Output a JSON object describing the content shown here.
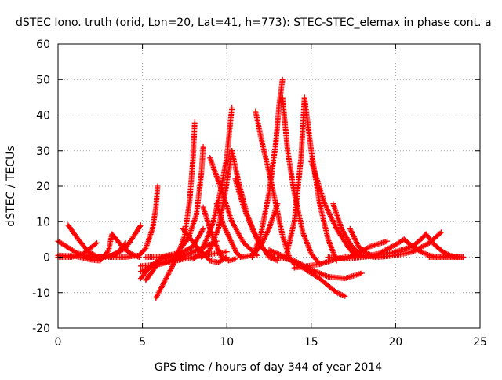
{
  "chart_data": {
    "type": "scatter",
    "title": "dSTEC Iono. truth (orid, Lon=20, Lat=41, h=773): STEC-STEC_elemax in phase cont. a",
    "xlabel": "GPS time / hours of day 344 of year 2014",
    "ylabel": "dSTEC  / TECUs",
    "xlim": [
      0,
      25
    ],
    "ylim": [
      -20,
      60
    ],
    "xticks": [
      0,
      5,
      10,
      15,
      20,
      25
    ],
    "yticks": [
      -20,
      -10,
      0,
      10,
      20,
      30,
      40,
      50,
      60
    ],
    "grid": true,
    "marker": "+",
    "color": "#ff0000",
    "series": [
      {
        "x": [
          0.0,
          0.5,
          1.0,
          1.5,
          2.0,
          2.3
        ],
        "y": [
          4.5,
          3.0,
          1.5,
          0.5,
          0.0,
          0.0
        ]
      },
      {
        "x": [
          0.0,
          0.8,
          1.5,
          2.3
        ],
        "y": [
          0.0,
          0.0,
          1.0,
          4.0
        ]
      },
      {
        "x": [
          0.6,
          1.2,
          1.8,
          2.4
        ],
        "y": [
          9.0,
          5.0,
          1.5,
          0.0
        ]
      },
      {
        "x": [
          0.0,
          1.0,
          2.0,
          2.5,
          3.0,
          3.2
        ],
        "y": [
          0.5,
          0.3,
          -0.8,
          -1.0,
          2.0,
          6.5
        ]
      },
      {
        "x": [
          3.2,
          3.8,
          4.3,
          4.8
        ],
        "y": [
          6.5,
          3.0,
          1.0,
          0.0
        ]
      },
      {
        "x": [
          2.5,
          3.2,
          4.0,
          4.5,
          4.9
        ],
        "y": [
          0.0,
          0.5,
          2.5,
          6.0,
          9.0
        ]
      },
      {
        "x": [
          1.5,
          2.8,
          3.5,
          4.0
        ],
        "y": [
          0.0,
          0.0,
          1.0,
          4.0
        ]
      },
      {
        "x": [
          4.9,
          5.5,
          6.2,
          6.8,
          7.3
        ],
        "y": [
          -6.0,
          -2.5,
          0.0,
          0.5,
          0.0
        ]
      },
      {
        "x": [
          5.2,
          5.6,
          6.1,
          6.6
        ],
        "y": [
          -6.5,
          -4.0,
          -0.5,
          0.0
        ]
      },
      {
        "x": [
          3.0,
          4.0,
          4.8,
          5.2,
          5.6,
          5.8,
          5.9
        ],
        "y": [
          0.0,
          0.0,
          0.5,
          2.5,
          8.0,
          14.0,
          20.0
        ]
      },
      {
        "x": [
          5.8,
          6.4,
          7.0,
          7.5,
          7.8,
          8.0,
          8.1
        ],
        "y": [
          -11.5,
          -6.0,
          -0.5,
          6.0,
          16.0,
          28.0,
          38.0
        ]
      },
      {
        "x": [
          4.9,
          6.0,
          7.5,
          8.5,
          9.4
        ],
        "y": [
          -4.0,
          -2.0,
          0.5,
          2.5,
          4.5
        ]
      },
      {
        "x": [
          4.9,
          6.0,
          7.0,
          8.0,
          9.0,
          10.0
        ],
        "y": [
          -2.5,
          -2.0,
          -1.0,
          0.0,
          0.8,
          1.5
        ]
      },
      {
        "x": [
          5.2,
          6.0,
          7.0,
          8.0,
          8.6
        ],
        "y": [
          0.0,
          0.0,
          0.5,
          3.0,
          8.0
        ]
      },
      {
        "x": [
          6.0,
          7.0,
          7.7,
          8.2,
          8.5,
          8.6
        ],
        "y": [
          0.0,
          1.0,
          5.0,
          12.0,
          24.0,
          31.0
        ]
      },
      {
        "x": [
          7.4,
          8.2,
          9.0,
          9.5,
          10.0
        ],
        "y": [
          8.0,
          3.0,
          -1.0,
          -1.5,
          0.0
        ]
      },
      {
        "x": [
          8.0,
          8.4,
          8.8,
          9.2,
          9.6,
          10.0,
          10.3
        ],
        "y": [
          -0.5,
          1.0,
          5.0,
          10.0,
          18.0,
          28.0,
          42.0
        ]
      },
      {
        "x": [
          8.6,
          9.0,
          9.3,
          9.7,
          10.1,
          10.5
        ],
        "y": [
          14.0,
          8.0,
          4.0,
          0.0,
          -1.0,
          -0.5
        ]
      },
      {
        "x": [
          9.4,
          9.8,
          10.2,
          10.6,
          10.9
        ],
        "y": [
          15.0,
          9.0,
          5.0,
          1.0,
          0.0
        ]
      },
      {
        "x": [
          8.5,
          9.0,
          9.5,
          9.9,
          10.3
        ],
        "y": [
          0.0,
          2.0,
          8.0,
          18.0,
          30.0
        ]
      },
      {
        "x": [
          10.3,
          10.7,
          11.2,
          11.8,
          12.5,
          13.0
        ],
        "y": [
          30.0,
          21.0,
          12.0,
          5.0,
          0.0,
          -1.0
        ]
      },
      {
        "x": [
          10.5,
          11.0,
          11.6,
          12.2,
          12.8
        ],
        "y": [
          22.0,
          14.0,
          7.0,
          2.0,
          0.0
        ]
      },
      {
        "x": [
          9.0,
          9.6,
          10.3,
          11.0,
          11.8
        ],
        "y": [
          28.0,
          20.0,
          10.0,
          4.0,
          0.5
        ]
      },
      {
        "x": [
          10.8,
          11.5,
          12.0,
          12.5,
          13.0
        ],
        "y": [
          0.0,
          0.5,
          3.0,
          8.0,
          15.0
        ]
      },
      {
        "x": [
          11.7,
          12.1,
          12.5,
          12.9,
          13.3,
          13.7,
          14.0
        ],
        "y": [
          41.0,
          32.0,
          24.0,
          15.0,
          6.0,
          0.0,
          -2.0
        ]
      },
      {
        "x": [
          11.5,
          12.0,
          12.5,
          12.9,
          13.1,
          13.3
        ],
        "y": [
          0.0,
          6.0,
          18.0,
          32.0,
          43.0,
          50.0
        ]
      },
      {
        "x": [
          13.3,
          13.6,
          14.0,
          14.5,
          15.0,
          15.5
        ],
        "y": [
          45.0,
          30.0,
          18.0,
          7.0,
          1.0,
          -2.0
        ]
      },
      {
        "x": [
          13.5,
          14.0,
          14.4,
          14.6
        ],
        "y": [
          0.0,
          10.0,
          28.0,
          45.0
        ]
      },
      {
        "x": [
          14.6,
          15.0,
          15.5,
          16.0,
          16.5
        ],
        "y": [
          45.0,
          30.0,
          15.0,
          5.0,
          -1.0
        ]
      },
      {
        "x": [
          12.5,
          13.5,
          14.5,
          15.5,
          16.5,
          17.0
        ],
        "y": [
          2.0,
          0.0,
          -3.0,
          -6.0,
          -10.0,
          -11.0
        ]
      },
      {
        "x": [
          13.0,
          14.0,
          15.0,
          16.0,
          17.0,
          18.0
        ],
        "y": [
          0.0,
          -1.0,
          -3.5,
          -5.5,
          -6.0,
          -4.5
        ]
      },
      {
        "x": [
          15.0,
          15.8,
          16.5,
          17.3,
          18.0
        ],
        "y": [
          27.0,
          15.0,
          8.0,
          2.0,
          0.0
        ]
      },
      {
        "x": [
          16.3,
          16.8,
          17.4,
          18.0,
          18.8
        ],
        "y": [
          15.0,
          8.0,
          3.0,
          0.5,
          0.0
        ]
      },
      {
        "x": [
          17.3,
          17.8,
          18.3,
          19.0
        ],
        "y": [
          8.0,
          3.0,
          1.0,
          0.0
        ]
      },
      {
        "x": [
          14.0,
          15.5,
          16.5,
          17.5,
          18.5,
          19.5
        ],
        "y": [
          -3.0,
          -2.0,
          -0.5,
          0.5,
          3.0,
          4.5
        ]
      },
      {
        "x": [
          16.0,
          17.0,
          18.0,
          19.0,
          20.0,
          20.5
        ],
        "y": [
          0.0,
          -0.5,
          0.0,
          1.0,
          3.5,
          5.0
        ]
      },
      {
        "x": [
          18.0,
          19.0,
          20.0,
          21.0,
          21.5,
          21.8
        ],
        "y": [
          0.0,
          0.5,
          1.5,
          3.0,
          5.0,
          6.5
        ]
      },
      {
        "x": [
          19.0,
          20.0,
          21.0,
          22.0,
          22.7
        ],
        "y": [
          0.0,
          0.5,
          1.5,
          4.0,
          7.0
        ]
      },
      {
        "x": [
          20.5,
          21.0,
          21.5,
          22.0,
          22.5,
          23.0,
          23.5
        ],
        "y": [
          5.0,
          3.0,
          1.5,
          0.5,
          0.0,
          0.0,
          0.0
        ]
      },
      {
        "x": [
          21.8,
          22.3,
          22.8,
          23.2,
          23.6,
          24.0
        ],
        "y": [
          6.5,
          3.5,
          1.5,
          0.5,
          0.0,
          0.0
        ]
      },
      {
        "x": [
          22.0,
          22.5,
          23.0,
          23.5,
          24.0
        ],
        "y": [
          0.0,
          0.0,
          0.3,
          0.2,
          0.0
        ]
      }
    ]
  }
}
